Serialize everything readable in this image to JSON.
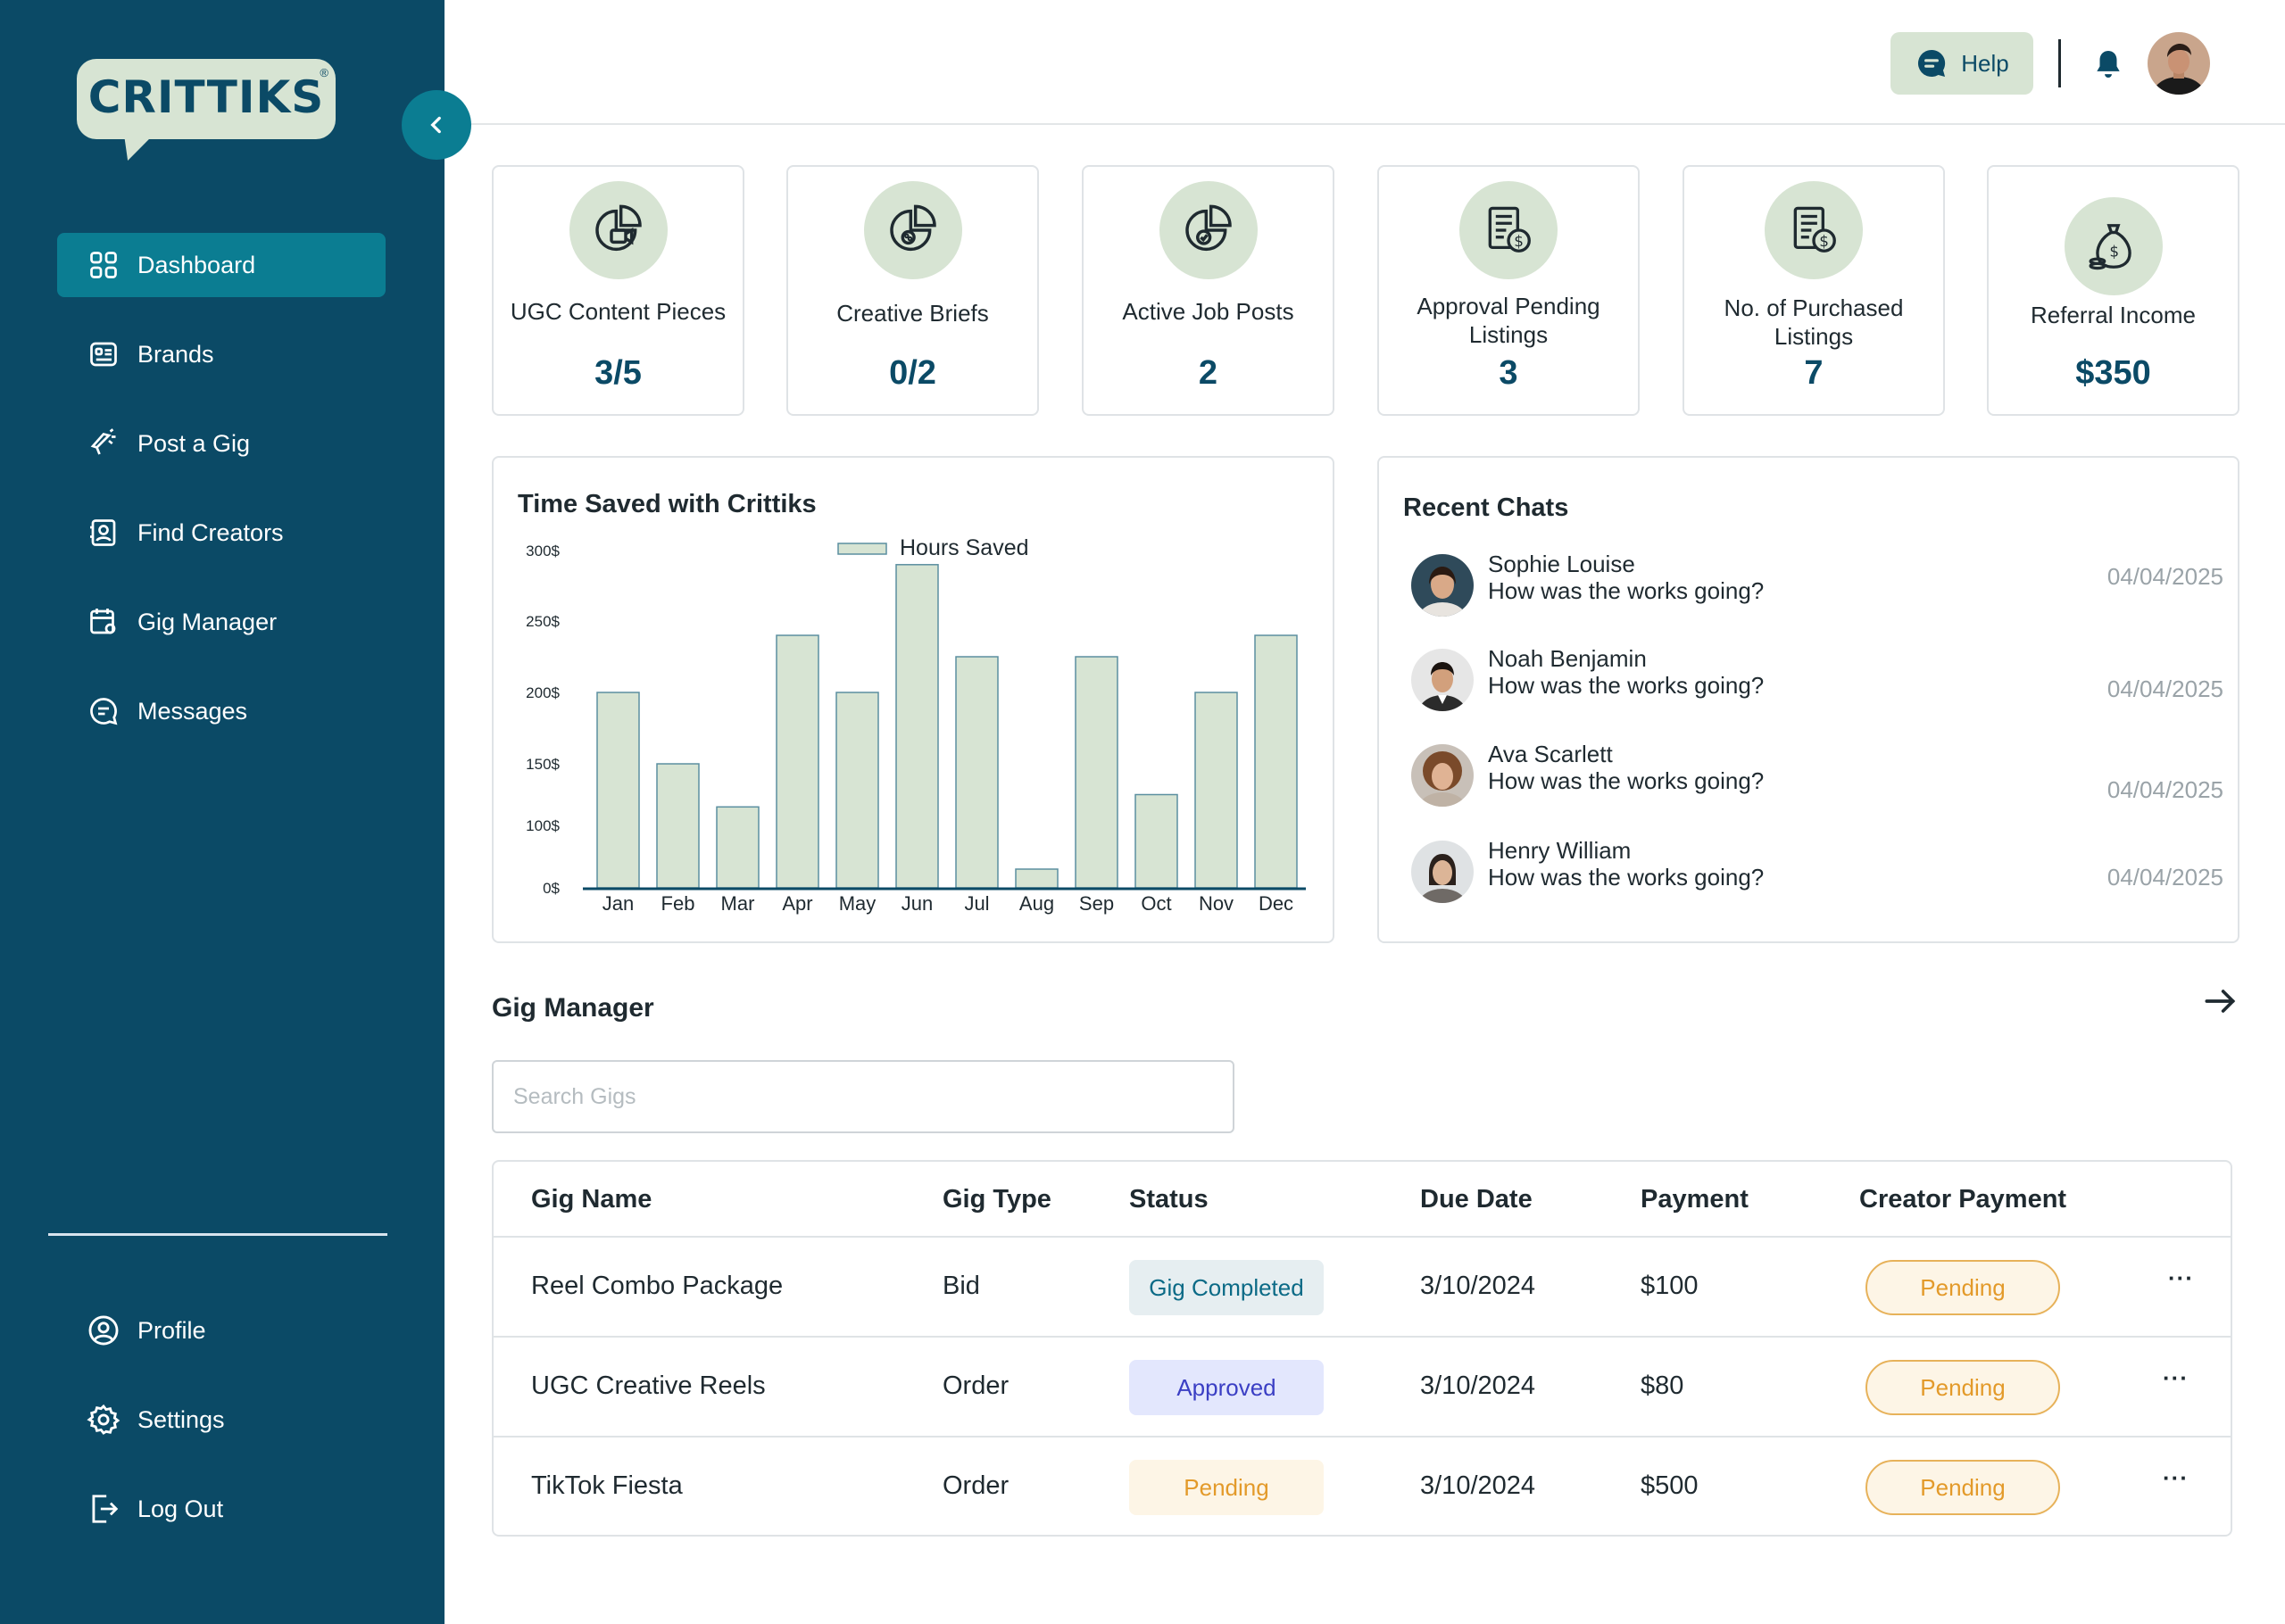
{
  "brand": {
    "name": "CRITTIKS",
    "reg": "®"
  },
  "sidebar": {
    "items": [
      {
        "label": "Dashboard",
        "icon": "dashboard-icon",
        "active": true
      },
      {
        "label": "Brands",
        "icon": "brands-icon"
      },
      {
        "label": "Post a Gig",
        "icon": "megaphone-icon"
      },
      {
        "label": "Find Creators",
        "icon": "find-creators-icon"
      },
      {
        "label": "Gig Manager",
        "icon": "gig-manager-icon"
      },
      {
        "label": "Messages",
        "icon": "messages-icon"
      }
    ],
    "bottom": [
      {
        "label": "Profile",
        "icon": "profile-icon"
      },
      {
        "label": "Settings",
        "icon": "settings-icon"
      },
      {
        "label": "Log Out",
        "icon": "logout-icon"
      }
    ]
  },
  "topbar": {
    "help_label": "Help"
  },
  "stats": [
    {
      "label": "UGC Content Pieces",
      "value": "3/5",
      "icon": "pie-video-icon"
    },
    {
      "label": "Creative Briefs",
      "value": "0/2",
      "icon": "pie-palette-icon"
    },
    {
      "label": "Active Job Posts",
      "value": "2",
      "icon": "pie-check-icon"
    },
    {
      "label": "Approval Pending Listings",
      "value": "3",
      "icon": "invoice-dollar-icon"
    },
    {
      "label": "No. of Purchased Listings",
      "value": "7",
      "icon": "invoice-dollar-icon"
    },
    {
      "label": "Referral Income",
      "value": "$350",
      "icon": "money-bag-icon"
    }
  ],
  "chart_data": {
    "type": "bar",
    "title": "Time Saved with Crittiks",
    "categories": [
      "Jan",
      "Feb",
      "Mar",
      "Apr",
      "May",
      "Jun",
      "Jul",
      "Aug",
      "Sep",
      "Oct",
      "Nov",
      "Dec"
    ],
    "series": [
      {
        "name": "Hours Saved",
        "values": [
          200,
          150,
          115,
          240,
          200,
          290,
          225,
          30,
          225,
          125,
          200,
          240
        ]
      }
    ],
    "y_ticks": [
      {
        "value": 0,
        "label": "0$"
      },
      {
        "value": 100,
        "label": "100$"
      },
      {
        "value": 150,
        "label": "150$"
      },
      {
        "value": 200,
        "label": "200$"
      },
      {
        "value": 250,
        "label": "250$"
      },
      {
        "value": 300,
        "label": "300$"
      }
    ],
    "grid": false,
    "legend": "top-center",
    "colors": {
      "bar_fill": "#d7e4d3",
      "bar_stroke": "#5b8fa0",
      "axis": "#0b4a66"
    }
  },
  "chats": {
    "title": "Recent Chats",
    "items": [
      {
        "name": "Sophie Louise",
        "message": "How was the works going?",
        "date": "04/04/2025"
      },
      {
        "name": "Noah Benjamin",
        "message": "How was the works going?",
        "date": "04/04/2025"
      },
      {
        "name": "Ava Scarlett",
        "message": "How was the works going?",
        "date": "04/04/2025"
      },
      {
        "name": "Henry William",
        "message": "How was the works going?",
        "date": "04/04/2025"
      }
    ]
  },
  "gigs": {
    "title": "Gig Manager",
    "search_placeholder": "Search Gigs",
    "columns": [
      "Gig Name",
      "Gig Type",
      "Status",
      "Due Date",
      "Payment",
      "Creator Payment"
    ],
    "rows": [
      {
        "name": "Reel Combo Package",
        "type": "Bid",
        "status": "Gig Completed",
        "status_kind": "completed",
        "due": "3/10/2024",
        "payment": "$100",
        "creator_payment": "Pending",
        "more": "···"
      },
      {
        "name": "UGC Creative Reels",
        "type": "Order",
        "status": "Approved",
        "status_kind": "approved",
        "due": "3/10/2024",
        "payment": "$80",
        "creator_payment": "Pending",
        "more": "···"
      },
      {
        "name": "TikTok Fiesta",
        "type": "Order",
        "status": "Pending",
        "status_kind": "pending",
        "due": "3/10/2024",
        "payment": "$500",
        "creator_payment": "Pending",
        "more": "···"
      }
    ]
  },
  "colors": {
    "sidebar": "#0b4a66",
    "accent": "#0b7d92",
    "sage": "#d7e4d3",
    "status_completed_bg": "#e6eef1",
    "status_completed_fg": "#0b6a86",
    "status_approved_bg": "#e3e7fd",
    "status_approved_fg": "#3b3fc4",
    "status_pending_bg": "#fdf5e6",
    "status_pending_fg": "#e39a2a"
  }
}
